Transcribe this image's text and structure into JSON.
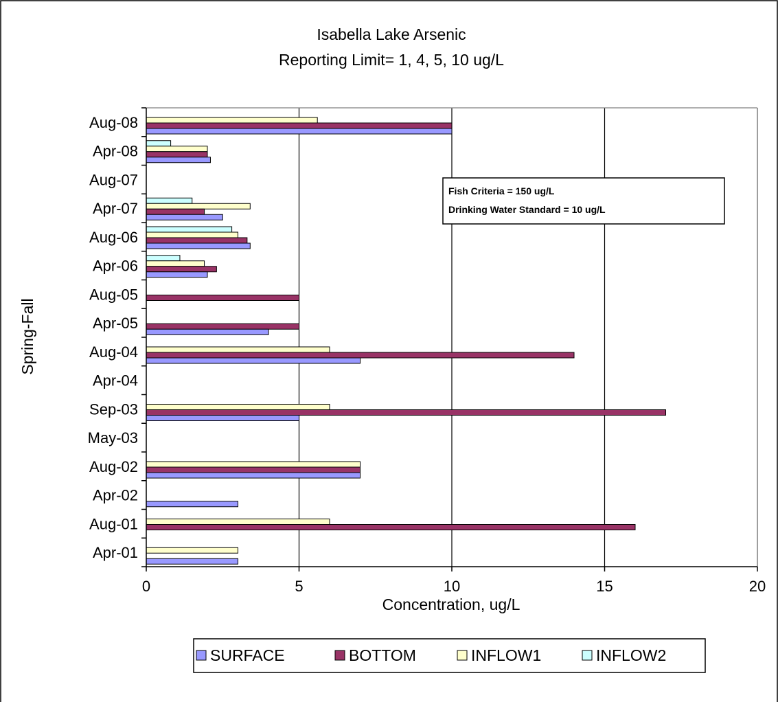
{
  "chart_data": {
    "type": "bar",
    "orientation": "horizontal",
    "title": "Isabella Lake Arsenic",
    "subtitle": "Reporting Limit= 1, 4, 5, 10 ug/L",
    "xlabel": "Concentration, ug/L",
    "ylabel": "Spring-Fall",
    "xlim": [
      0,
      20
    ],
    "x_ticks": [
      "0",
      "5",
      "10",
      "15",
      "20"
    ],
    "grid": "vertical major gridlines",
    "legend_position": "bottom",
    "categories": [
      "Apr-01",
      "Aug-01",
      "Apr-02",
      "Aug-02",
      "May-03",
      "Sep-03",
      "Apr-04",
      "Aug-04",
      "Apr-05",
      "Aug-05",
      "Apr-06",
      "Aug-06",
      "Apr-07",
      "Aug-07",
      "Apr-08",
      "Aug-08"
    ],
    "series": [
      {
        "name": "SURFACE",
        "color": "#9999FF",
        "values": [
          3,
          null,
          3,
          7,
          null,
          5,
          null,
          7,
          4,
          null,
          2,
          3.4,
          2.5,
          null,
          2.1,
          10
        ]
      },
      {
        "name": "BOTTOM",
        "color": "#993366",
        "values": [
          null,
          16,
          null,
          7,
          null,
          17,
          null,
          14,
          5,
          5,
          2.3,
          3.3,
          1.9,
          null,
          2,
          10
        ]
      },
      {
        "name": "INFLOW1",
        "color": "#FFFFCC",
        "values": [
          3,
          6,
          null,
          7,
          null,
          6,
          null,
          6,
          null,
          null,
          1.9,
          3,
          3.4,
          null,
          2,
          5.6
        ]
      },
      {
        "name": "INFLOW2",
        "color": "#CCFFFF",
        "values": [
          null,
          null,
          null,
          null,
          null,
          null,
          null,
          null,
          null,
          null,
          1.1,
          2.8,
          1.5,
          null,
          0.8,
          null
        ]
      }
    ],
    "annotation": {
      "line1": "Fish Criteria = 150 ug/L",
      "line2": "Drinking Water Standard = 10 ug/L"
    }
  }
}
